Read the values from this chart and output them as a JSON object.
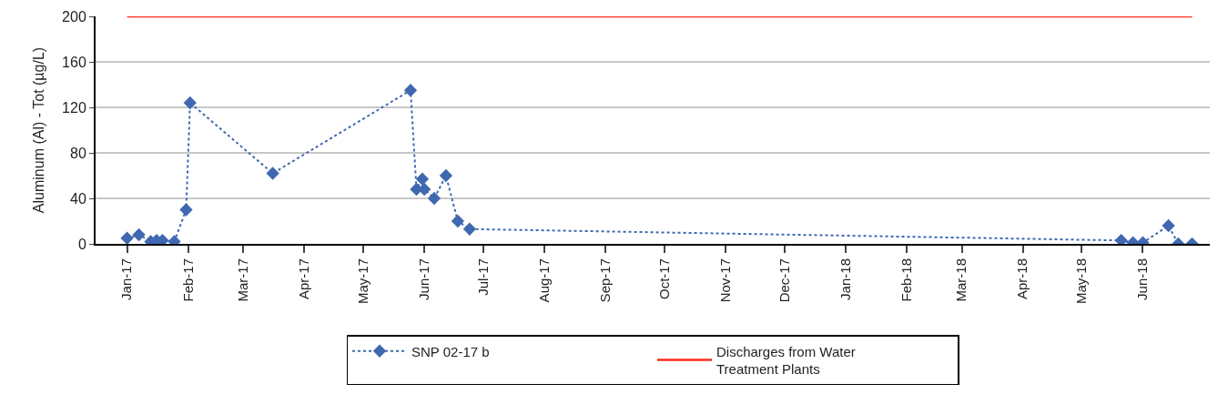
{
  "chart_data": {
    "type": "line",
    "ylabel": "Aluminum (Al) - Tot (µg/L)",
    "ylim": [
      0,
      200
    ],
    "yticks": [
      0,
      40,
      80,
      120,
      160,
      200
    ],
    "grid": "y",
    "legend": "bottom",
    "xlim": [
      "2016-12-16",
      "2018-07-05"
    ],
    "xticks": [
      {
        "value": "2017-01-01",
        "label": "Jan-17"
      },
      {
        "value": "2017-02-01",
        "label": "Feb-17"
      },
      {
        "value": "2017-03-01",
        "label": "Mar-17"
      },
      {
        "value": "2017-04-01",
        "label": "Apr-17"
      },
      {
        "value": "2017-05-01",
        "label": "May-17"
      },
      {
        "value": "2017-06-01",
        "label": "Jun-17"
      },
      {
        "value": "2017-07-01",
        "label": "Jul-17"
      },
      {
        "value": "2017-08-01",
        "label": "Aug-17"
      },
      {
        "value": "2017-09-01",
        "label": "Sep-17"
      },
      {
        "value": "2017-10-01",
        "label": "Oct-17"
      },
      {
        "value": "2017-11-01",
        "label": "Nov-17"
      },
      {
        "value": "2017-12-01",
        "label": "Dec-17"
      },
      {
        "value": "2018-01-01",
        "label": "Jan-18"
      },
      {
        "value": "2018-02-01",
        "label": "Feb-18"
      },
      {
        "value": "2018-03-01",
        "label": "Mar-18"
      },
      {
        "value": "2018-04-01",
        "label": "Apr-18"
      },
      {
        "value": "2018-05-01",
        "label": "May-18"
      },
      {
        "value": "2018-06-01",
        "label": "Jun-18"
      }
    ],
    "series": [
      {
        "name": "SNP 02-17 b",
        "color": "#4068b0",
        "marker": "diamond",
        "line_style": "dotted",
        "x": [
          "2017-01-01",
          "2017-01-07",
          "2017-01-13",
          "2017-01-16",
          "2017-01-19",
          "2017-01-25",
          "2017-01-31",
          "2017-02-02",
          "2017-03-16",
          "2017-05-25",
          "2017-05-28",
          "2017-05-31",
          "2017-06-01",
          "2017-06-06",
          "2017-06-12",
          "2017-06-18",
          "2017-06-24",
          "2018-05-21",
          "2018-05-27",
          "2018-06-01",
          "2018-06-14",
          "2018-06-19",
          "2018-06-26"
        ],
        "values": [
          5,
          8,
          2,
          3,
          3,
          2,
          30,
          124,
          62,
          135,
          48,
          57,
          48,
          40,
          60,
          20,
          13,
          3,
          1,
          1,
          16,
          0,
          0
        ]
      },
      {
        "name": "Discharges from Water Treatment Plants",
        "color": "#ff2a1a",
        "marker": "none",
        "line_style": "solid",
        "x": [
          "2017-01-01",
          "2018-06-26"
        ],
        "values": [
          200,
          200
        ]
      }
    ]
  }
}
